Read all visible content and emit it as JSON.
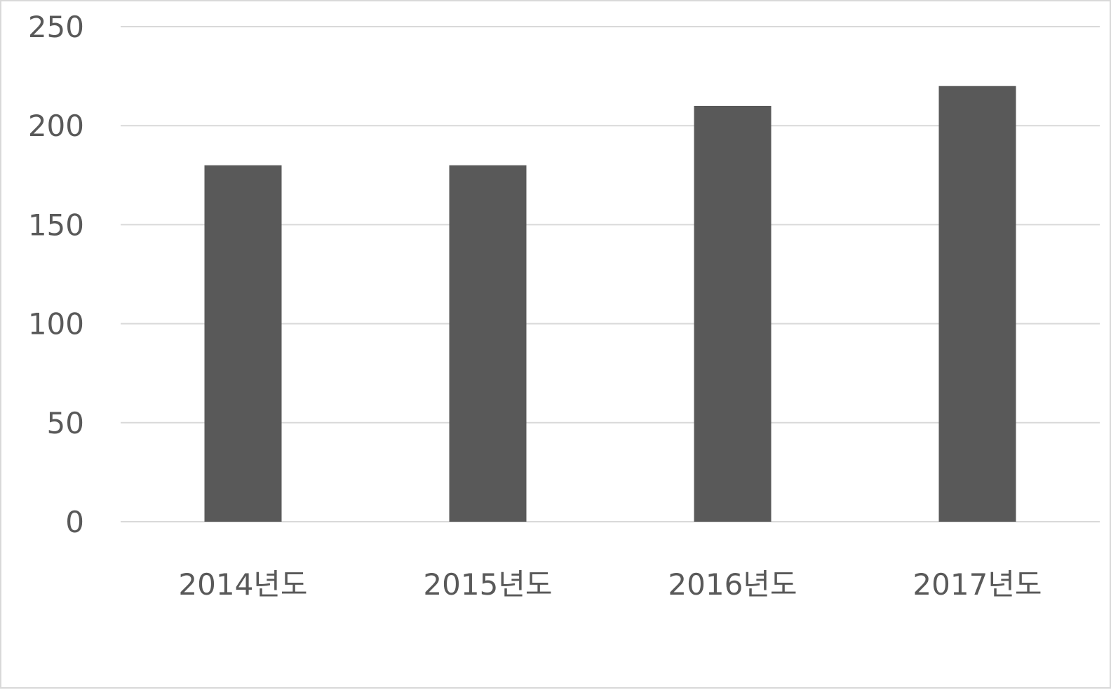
{
  "chart_data": {
    "type": "bar",
    "categories": [
      "2014년도",
      "2015년도",
      "2016년도",
      "2017년도"
    ],
    "values": [
      180,
      180,
      210,
      220
    ],
    "ylim": [
      0,
      250
    ],
    "yticks": [
      0,
      50,
      100,
      150,
      200,
      250
    ],
    "grid": true,
    "legend": "none",
    "colors": {
      "bar": "#595959",
      "grid": "#d9d9d9",
      "text": "#595959",
      "border": "#d9d9d9"
    }
  }
}
